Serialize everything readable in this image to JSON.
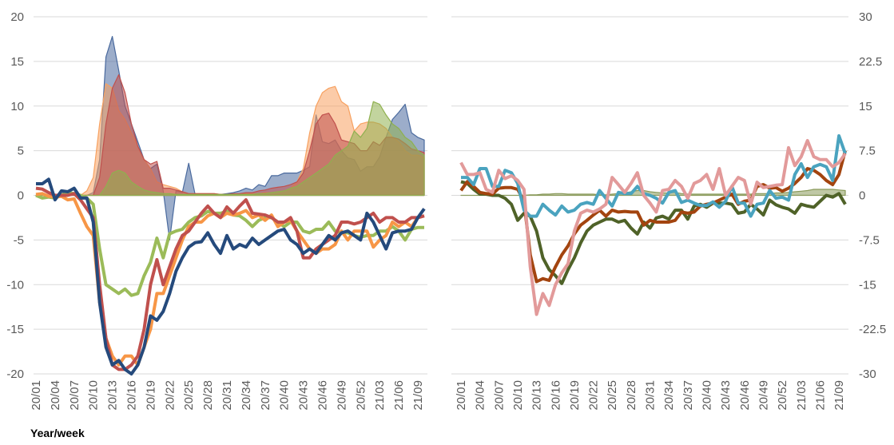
{
  "chart_data": [
    {
      "type": "line",
      "panel": "left",
      "xlabel": "Year/week",
      "x_tick_labels": [
        "20/01",
        "20/04",
        "20/07",
        "20/10",
        "20/13",
        "20/16",
        "20/19",
        "20/22",
        "20/25",
        "20/28",
        "20/31",
        "20/34",
        "20/37",
        "20/40",
        "20/43",
        "20/46",
        "20/49",
        "20/52",
        "21/03",
        "21/06",
        "21/09"
      ],
      "y_tick_labels": [
        "20",
        "15",
        "10",
        "5",
        "0",
        "-5",
        "-10",
        "-15",
        "-20"
      ],
      "ylim": [
        -20,
        20
      ],
      "grid": true,
      "area_series": [
        {
          "name": "area-blue",
          "color": "#4a6a9e",
          "values": [
            0,
            0,
            0,
            0,
            0,
            0,
            0,
            0,
            0,
            0.3,
            4,
            15.5,
            17.8,
            14,
            10,
            8,
            6,
            4,
            3,
            3.5,
            0.5,
            -5,
            0.5,
            0.3,
            3.6,
            0.1,
            0.1,
            0.1,
            0.1,
            0.1,
            0.2,
            0.3,
            0.5,
            0.8,
            0.6,
            1.2,
            1,
            2.2,
            2.2,
            2.5,
            2.5,
            2.5,
            2.8,
            3.2,
            9,
            6,
            5.8,
            6.2,
            5,
            4.2,
            4,
            2.7,
            3.2,
            3.2,
            4.3,
            6.5,
            8.5,
            9.3,
            10.2,
            7,
            6.5,
            6.2
          ]
        },
        {
          "name": "area-orange",
          "color": "#f7a160",
          "values": [
            0,
            0,
            0,
            0,
            0,
            0,
            0,
            0,
            0.5,
            2,
            8,
            12.5,
            12,
            9.5,
            8.5,
            7,
            5.5,
            4,
            3,
            1.5,
            1.2,
            1,
            0.8,
            0.4,
            0.2,
            0.2,
            0.2,
            0.2,
            0.2,
            0.1,
            0.1,
            0.1,
            0.2,
            0.2,
            0.2,
            0.2,
            0.3,
            0.3,
            0.4,
            0.5,
            0.8,
            1.5,
            3,
            7,
            10,
            11.5,
            12,
            12.2,
            10.5,
            10,
            7.2,
            8,
            8.2,
            8.2,
            8,
            7.5,
            6.5,
            6,
            5,
            4.5,
            4.5,
            4.2
          ]
        },
        {
          "name": "area-red",
          "color": "#c0504d",
          "values": [
            0,
            0,
            0,
            0,
            0,
            0,
            0,
            0,
            0,
            0,
            2,
            8,
            12,
            13.5,
            11.5,
            8,
            5.5,
            4,
            3.5,
            3.8,
            0.8,
            0.8,
            0.6,
            0.4,
            0.2,
            0.2,
            0.2,
            0.2,
            0.2,
            0.1,
            0.1,
            0.2,
            0.2,
            0.3,
            0.3,
            0.5,
            0.6,
            0.8,
            0.9,
            1,
            1.2,
            1.5,
            2.5,
            5,
            8,
            9,
            9.2,
            8,
            6.2,
            6,
            5.8,
            5,
            5,
            6,
            5.6,
            6.5,
            6.5,
            6.3,
            5.8,
            5.2,
            5,
            4.8
          ]
        },
        {
          "name": "area-green",
          "color": "#8fb04f",
          "values": [
            0,
            0,
            0,
            0,
            0,
            0,
            0,
            0,
            0,
            0,
            0,
            1,
            2.5,
            2.8,
            2.5,
            1.5,
            1,
            0.6,
            0.4,
            0.3,
            0.2,
            0.2,
            0.1,
            0.1,
            0.1,
            0.1,
            0.1,
            0.1,
            0.1,
            0.1,
            0.1,
            0.1,
            0.1,
            0.1,
            0.1,
            0.2,
            0.2,
            0.3,
            0.4,
            0.5,
            0.8,
            1,
            1.5,
            2,
            2.5,
            3,
            3.5,
            4.5,
            5,
            5.5,
            7.2,
            6.5,
            7.5,
            10.5,
            10.2,
            9,
            8,
            7.5,
            6.5,
            6,
            5,
            4.5
          ]
        }
      ],
      "line_series": [
        {
          "name": "line-green",
          "color": "#9bbb59",
          "values": [
            0,
            -0.3,
            -0.2,
            -0.3,
            0,
            0.3,
            0.2,
            0,
            -0.3,
            -1,
            -6,
            -10,
            -10.5,
            -11,
            -10.5,
            -11.2,
            -11,
            -9,
            -7.5,
            -4.8,
            -7,
            -4.3,
            -4,
            -3.8,
            -3,
            -2.5,
            -2.3,
            -1.8,
            -2,
            -2,
            -1.8,
            -2.2,
            -2.3,
            -2.8,
            -3.5,
            -2.8,
            -2.5,
            -2.5,
            -3,
            -3.5,
            -3,
            -3,
            -4,
            -4.2,
            -3.8,
            -3.8,
            -3,
            -4,
            -4.2,
            -4.2,
            -4.5,
            -4.7,
            -4.5,
            -4.5,
            -4,
            -4,
            -3.5,
            -4,
            -5,
            -3.8,
            -3.6,
            -3.6
          ]
        },
        {
          "name": "line-orange",
          "color": "#f79646",
          "values": [
            0.1,
            0.2,
            -0.1,
            -0.2,
            -0.1,
            -0.5,
            -0.4,
            -2,
            -3.5,
            -4.5,
            -12,
            -16,
            -18,
            -19,
            -18,
            -18,
            -19,
            -17,
            -15,
            -11,
            -11,
            -9,
            -7,
            -5,
            -3.5,
            -3,
            -3,
            -2.3,
            -2,
            -2.5,
            -2,
            -2.2,
            -2,
            -1.7,
            -2.5,
            -2.2,
            -2.8,
            -2.2,
            -3.5,
            -3,
            -2.8,
            -4,
            -5,
            -6,
            -6.5,
            -6,
            -6,
            -5.5,
            -4,
            -5,
            -4,
            -4,
            -4,
            -5.8,
            -5,
            -4.5,
            -3,
            -3.5,
            -3,
            -3.5,
            -2.5,
            -2.3
          ]
        },
        {
          "name": "line-red",
          "color": "#c0504d",
          "values": [
            0.8,
            0.7,
            0.3,
            0,
            0,
            0,
            0.2,
            -0.5,
            -1.5,
            -2.5,
            -10,
            -16,
            -19,
            -19.5,
            -19.5,
            -19,
            -18,
            -15,
            -10,
            -7.2,
            -10,
            -8,
            -6,
            -4.5,
            -4,
            -3,
            -2,
            -1.2,
            -2,
            -2.5,
            -1.3,
            -2,
            -1.2,
            -0.5,
            -2,
            -2.1,
            -2.2,
            -2.5,
            -3,
            -3,
            -2.5,
            -4,
            -7,
            -7,
            -6,
            -5.5,
            -5,
            -4.5,
            -3,
            -3,
            -3.2,
            -3,
            -2.5,
            -2,
            -3,
            -2.5,
            -2.5,
            -3,
            -3,
            -2.5,
            -2.5,
            -2.3
          ]
        },
        {
          "name": "line-navy",
          "color": "#254a7c",
          "values": [
            1.3,
            1.3,
            1.8,
            -0.5,
            0.5,
            0.4,
            0.8,
            -0.3,
            -0.3,
            -3,
            -12,
            -17,
            -19,
            -18.5,
            -19.5,
            -20,
            -19,
            -17,
            -13.5,
            -14,
            -13,
            -11,
            -8.5,
            -7,
            -5.8,
            -5.3,
            -5.2,
            -4.2,
            -5.5,
            -6.5,
            -4.5,
            -6,
            -5.5,
            -5.8,
            -4.8,
            -5.5,
            -5,
            -4.5,
            -4,
            -3.8,
            -5,
            -5.5,
            -6.5,
            -6,
            -6.5,
            -5.5,
            -4.5,
            -5,
            -4.2,
            -4,
            -4.5,
            -5,
            -2,
            -3,
            -4.5,
            -6,
            -4.2,
            -4,
            -4,
            -3.8,
            -2.5,
            -1.5
          ]
        }
      ]
    },
    {
      "type": "line",
      "panel": "right",
      "x_tick_labels": [
        "20/01",
        "20/04",
        "20/07",
        "20/10",
        "20/13",
        "20/16",
        "20/19",
        "20/22",
        "20/25",
        "20/28",
        "20/31",
        "20/34",
        "20/37",
        "20/40",
        "20/43",
        "20/46",
        "20/49",
        "20/52",
        "21/03",
        "21/06",
        "21/09"
      ],
      "y_tick_labels": [
        "30",
        "22.5",
        "15",
        "7.5",
        "0",
        "-7.5",
        "-15",
        "-22.5",
        "-30"
      ],
      "ylim": [
        -30,
        30
      ],
      "grid": true,
      "area_series": [
        {
          "name": "area-olive",
          "color": "#8a9a5b",
          "values": [
            0,
            0,
            0,
            0,
            0,
            0,
            0,
            0,
            0,
            0,
            0,
            0.1,
            0.1,
            0.2,
            0.2,
            0.3,
            0.3,
            0.2,
            0.2,
            0.2,
            0.2,
            0.2,
            0.1,
            0.1,
            0.2,
            0.3,
            0.4,
            0.6,
            0.8,
            0.8,
            0.6,
            0.5,
            0.4,
            0.4,
            0.5,
            0.3,
            0.2,
            0.2,
            0.2,
            0.2,
            0.2,
            0.2,
            0.2,
            0.2,
            0.2,
            0.2,
            0.2,
            0.3,
            0.3,
            0.3,
            0.4,
            0.4,
            0.5,
            0.6,
            0.7,
            0.8,
            1,
            1,
            1,
            1,
            0.9,
            0.8
          ]
        }
      ],
      "line_series": [
        {
          "name": "line-darkgreen",
          "color": "#4f6228",
          "values": [
            2.3,
            2,
            1,
            0.2,
            0.2,
            0,
            0,
            -0.5,
            -1.5,
            -4.2,
            -3,
            -3.5,
            -6,
            -10.5,
            -12.5,
            -13.5,
            -14.8,
            -12.5,
            -10.5,
            -8,
            -6,
            -5,
            -4.5,
            -4,
            -4,
            -4.5,
            -4.2,
            -5.5,
            -6.5,
            -4.5,
            -5.5,
            -3.8,
            -3.5,
            -4,
            -2.5,
            -2.5,
            -4,
            -1.8,
            -1.5,
            -2,
            -1.3,
            -1.3,
            -1.3,
            -1.5,
            -3,
            -2.8,
            -1.5,
            -2.3,
            -3.3,
            -0.8,
            -1.6,
            -2,
            -2.3,
            -3,
            -1.5,
            -1.8,
            -2,
            -1,
            0,
            -0.3,
            0.3,
            -1.5
          ]
        },
        {
          "name": "line-brown",
          "color": "#a3440f",
          "values": [
            0.8,
            2.3,
            1.5,
            0.5,
            0.3,
            0.2,
            1.2,
            1.3,
            1.3,
            1,
            -1,
            -10,
            -14.5,
            -14,
            -14.3,
            -12,
            -10,
            -8.5,
            -6.5,
            -5,
            -4.2,
            -3.3,
            -2.5,
            -3.5,
            -2.5,
            -2.8,
            -2.7,
            -2.8,
            -2.8,
            -5,
            -4.2,
            -4.5,
            -4.5,
            -4.5,
            -4.2,
            -2.8,
            -3,
            -2.8,
            -1.8,
            -1.5,
            -1.3,
            -0.8,
            -0.3,
            0.2,
            -1.5,
            -1,
            -0.8,
            1.5,
            1.8,
            1.2,
            1.3,
            0.7,
            1.2,
            2,
            3,
            4.5,
            4.2,
            3.5,
            2.5,
            1.8,
            3.5,
            7.5
          ]
        },
        {
          "name": "line-teal",
          "color": "#4aa3bf",
          "values": [
            3,
            3,
            1.8,
            4.5,
            4.5,
            1.5,
            1.5,
            4.2,
            3.8,
            2,
            -2.5,
            -3.5,
            -3.5,
            -1.5,
            -2.5,
            -3.3,
            -1.8,
            -2.8,
            -2.5,
            -1.5,
            -1.2,
            -1.5,
            0.8,
            -0.5,
            -1.8,
            0.5,
            0.3,
            0.3,
            1.5,
            0.3,
            0,
            -0.5,
            -1.3,
            0.5,
            0.8,
            -1.2,
            -0.8,
            -1.3,
            -1.7,
            -1.7,
            -1.1,
            -2,
            -1,
            1.5,
            -1.3,
            -1.3,
            -3.5,
            -1.5,
            -1.3,
            0.8,
            -0.5,
            -0.3,
            -0.8,
            3.5,
            5.3,
            3,
            4.8,
            5.2,
            4.8,
            2.5,
            10,
            7
          ]
        },
        {
          "name": "line-pink",
          "color": "#e29a9a",
          "values": [
            5.5,
            3.5,
            3.5,
            3.8,
            1,
            0.5,
            4.2,
            2.8,
            3.3,
            2.5,
            1,
            -12,
            -20,
            -16.5,
            -18.5,
            -15,
            -13,
            -11.5,
            -6,
            -3,
            -2.5,
            -2.8,
            -2.3,
            -1.5,
            3,
            1.8,
            0.5,
            2,
            3.8,
            0,
            -1.3,
            -2.8,
            0.8,
            1,
            2.5,
            1.5,
            -0.5,
            2,
            2.5,
            3.5,
            1,
            4.5,
            0,
            1.5,
            3,
            2.5,
            -1.5,
            2.2,
            1.3,
            1.5,
            1.7,
            1.8,
            8,
            5,
            6.5,
            9.2,
            6.5,
            6,
            6,
            4.8,
            5.5,
            7
          ]
        }
      ]
    }
  ]
}
